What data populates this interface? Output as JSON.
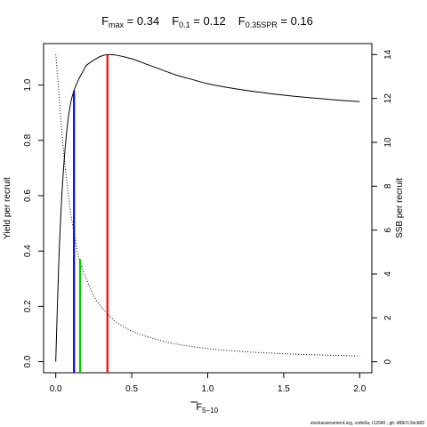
{
  "chart_data": {
    "type": "line",
    "title_parts": [
      {
        "sym": "F",
        "sub": "max",
        "eq": " = 0.34"
      },
      {
        "sym": "F",
        "sub": "0.1",
        "eq": " = 0.12"
      },
      {
        "sym": "F",
        "sub": "0.35SPR",
        "eq": " = 0.16"
      }
    ],
    "xlabel": {
      "sym": "F",
      "sub": "5−10"
    },
    "ylabel_left": "Yield per recruit",
    "ylabel_right": "SSB per recruit",
    "xlim": [
      -0.08,
      2.08
    ],
    "ylim_left": [
      -0.04,
      1.15
    ],
    "ylim_right": [
      -0.5,
      14.5
    ],
    "x_ticks": [
      0,
      0.5,
      1,
      1.5,
      2
    ],
    "x_tick_labels": [
      "0.0",
      "0.5",
      "1.0",
      "1.5",
      "2.0"
    ],
    "y_left_ticks": [
      0,
      0.2,
      0.4,
      0.6,
      0.8,
      1.0
    ],
    "y_left_tick_labels": [
      "0.0",
      "0.2",
      "0.4",
      "0.6",
      "0.8",
      "1.0"
    ],
    "y_right_ticks": [
      0,
      2,
      4,
      6,
      8,
      10,
      12,
      14
    ],
    "y_right_tick_labels": [
      "0",
      "2",
      "4",
      "6",
      "8",
      "10",
      "12",
      "14"
    ],
    "series": [
      {
        "axis": "left",
        "style": "solid",
        "color": "#000000",
        "x": [
          0,
          0.02,
          0.04,
          0.06,
          0.08,
          0.1,
          0.12,
          0.15,
          0.18,
          0.2,
          0.25,
          0.3,
          0.34,
          0.4,
          0.5,
          0.6,
          0.7,
          0.8,
          0.9,
          1.0,
          1.2,
          1.4,
          1.6,
          1.8,
          2.0
        ],
        "y": [
          0,
          0.36,
          0.6,
          0.76,
          0.87,
          0.94,
          0.98,
          1.02,
          1.05,
          1.07,
          1.09,
          1.105,
          1.11,
          1.108,
          1.095,
          1.075,
          1.055,
          1.035,
          1.02,
          1.005,
          0.985,
          0.97,
          0.958,
          0.948,
          0.94
        ]
      },
      {
        "axis": "right",
        "style": "dotted",
        "color": "#000000",
        "x": [
          0,
          0.02,
          0.04,
          0.06,
          0.08,
          0.1,
          0.12,
          0.15,
          0.2,
          0.25,
          0.3,
          0.34,
          0.4,
          0.5,
          0.6,
          0.7,
          0.8,
          1.0,
          1.2,
          1.4,
          1.6,
          1.8,
          2.0
        ],
        "y": [
          14.0,
          12.3,
          10.5,
          9.0,
          7.8,
          6.7,
          5.9,
          4.8,
          3.8,
          3.0,
          2.5,
          2.2,
          1.8,
          1.4,
          1.15,
          0.95,
          0.8,
          0.6,
          0.48,
          0.4,
          0.34,
          0.3,
          0.26
        ]
      }
    ],
    "reference_lines": [
      {
        "x": 0.34,
        "y": 1.11,
        "color": "#ff0000"
      },
      {
        "x": 0.12,
        "y": 0.98,
        "color": "#0000ff"
      },
      {
        "x": 0.16,
        "y": 0.37,
        "color": "#00cc00"
      }
    ]
  },
  "footer": "stockassessment.org, codn5a, r12040 , git: df0b7c1bcb83"
}
